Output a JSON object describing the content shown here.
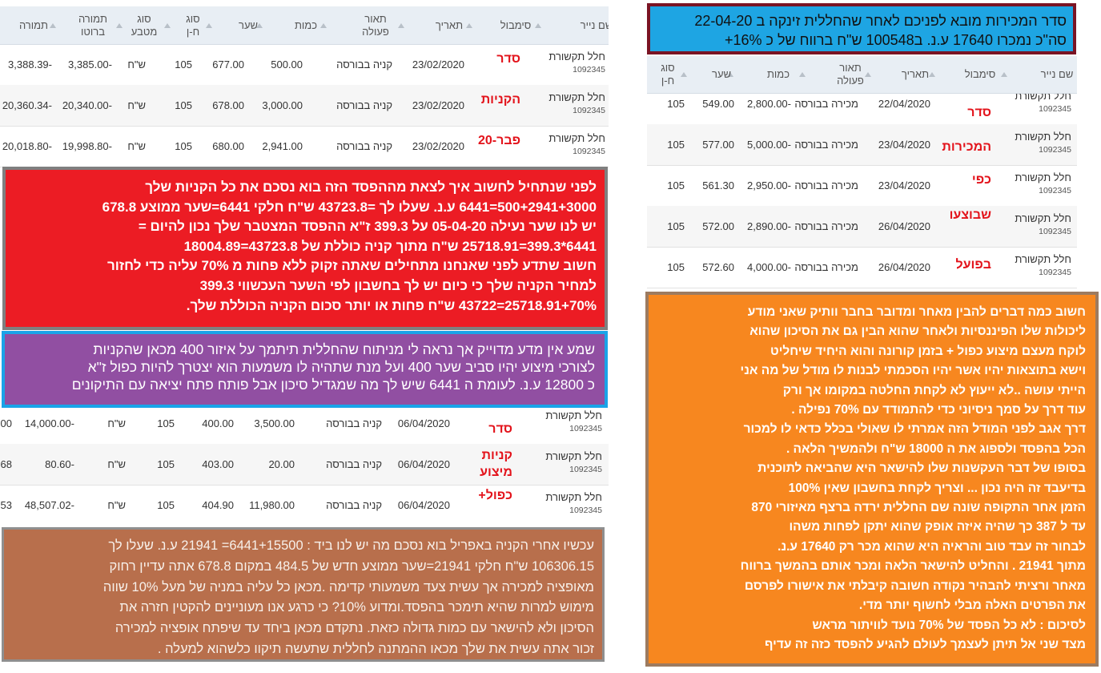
{
  "left_table": {
    "headers": [
      "שם נייר",
      "סימבול",
      "תאריך",
      "תאור פעולה",
      "כמות",
      "שער",
      "סוג ח-ן",
      "סוג מטבע",
      "תמורה ברוטו",
      "תמורה"
    ],
    "rows": [
      {
        "name": "חלל תקשורת",
        "id": "1092345",
        "note": "סדר",
        "date": "23/02/2020",
        "action": "קניה בבורסה",
        "quantity": "500.00",
        "price": "677.00",
        "account_type": "105",
        "currency": "ש\"ח",
        "gross": "-3,385.00",
        "net": "-3,388.39"
      },
      {
        "name": "חלל תקשורת",
        "id": "1092345",
        "note": "הקניות",
        "date": "23/02/2020",
        "action": "קניה בבורסה",
        "quantity": "3,000.00",
        "price": "678.00",
        "account_type": "105",
        "currency": "ש\"ח",
        "gross": "-20,340.00",
        "net": "-20,360.34"
      },
      {
        "name": "חלל תקשורת",
        "id": "1092345",
        "note": "פבר-20",
        "date": "23/02/2020",
        "action": "קניה בבורסה",
        "quantity": "2,941.00",
        "price": "680.00",
        "account_type": "105",
        "currency": "ש\"ח",
        "gross": "-19,998.80",
        "net": "-20,018.80"
      }
    ]
  },
  "left_table_2": {
    "rows": [
      {
        "name": "חלל תקשורת",
        "id": "1092345",
        "note": "סדר",
        "date": "06/04/2020",
        "action": "קניה בבורסה",
        "quantity": "3,500.00",
        "price": "400.00",
        "account_type": "105",
        "currency": "ש\"ח",
        "gross": "-14,000.00",
        "net": "00"
      },
      {
        "name": "חלל תקשורת",
        "id": "1092345",
        "note": "קניות מיצוע",
        "date": "06/04/2020",
        "action": "קניה בבורסה",
        "quantity": "20.00",
        "price": "403.00",
        "account_type": "105",
        "currency": "ש\"ח",
        "gross": "-80.60",
        "net": "68"
      },
      {
        "name": "חלל תקשורת",
        "id": "1092345",
        "note": "כפול+",
        "date": "06/04/2020",
        "action": "קניה בבורסה",
        "quantity": "11,980.00",
        "price": "404.90",
        "account_type": "105",
        "currency": "ש\"ח",
        "gross": "-48,507.02",
        "net": "53"
      }
    ]
  },
  "red_note": {
    "lines": [
      "לפני שנתחיל לחשוב איך לצאת מההפסד הזה בוא נסכם את  כל הקניות שלך",
      "500+2941+3000=6441 ע.נ. שעלו לך =43723.8 ש\"ח חלקי 6441=שער ממוצע 678.8",
      "יש לנו שער נעילה 05-04-20 על 399.3 ז\"א ההפסד המצטבר שלך נכון להיום =",
      "6441*399.3=25718.91 ש\"ח מתוך קניה כוללת של 43723.8=18004.89",
      "חשוב שתדע לפני שאנחנו מתחילים שאתה זקוק ללא פחות מ 70% עליה כדי לחזור",
      "למחיר הקניה שלך כי כיום יש לך בחשבון לפי השער העכשווי 399.3",
      "70%+25718.91=43722 ש\"ח פחות או יותר סכום הקניה הכוללת שלך."
    ]
  },
  "purple_note": {
    "lines": [
      "שמע אין מדע מדוייק אך נראה לי מניתוח שהחללית תיתמך על איזור 400 מכאן שהקניות",
      "לצורכי מיצוע יהיו סביב שער 400  ועל מנת שתהיה לו משמעות הוא יצטרך להיות כפול ז\"א",
      "כ 12800 ע.נ. לעומת ה 6441 שיש לך מה שמגדיל סיכון אבל פותח פתח יציאה עם התיקונים"
    ]
  },
  "brown_note": {
    "lines": [
      "עכשיו אחרי הקניה באפריל בוא נסכם מה יש לנו ביד : 6441+15500= 21941 ע.נ. שעלו לך",
      "106306.15 ש\"ח חלקי  21941=שער ממוצע חדש של 484.5 במקום 678.8 אתה עדיין רחוק",
      "מאופציה למכירה אך עשית צעד משמעותי קדימה .מכאן כל עליה במניה של מעל 10% שווה",
      "מימוש למרות שהיא תימכר בהפסד.ומדוע 10%? כי כרגע אנו מעוניינים להקטין חזרה את",
      "הסיכון ולא להישאר עם כמות גדולה כזאת. נתקדם מכאן ביחד עד שיפתח אופציה למכירה",
      "זכור אתה עשית את שלך מכאו ההמתנה לחללית שתעשה תיקוו כלשהוא למעלה ."
    ]
  },
  "title_note": {
    "lines": [
      "סדר המכירות מובא לפניכם לאחר שהחללית זינקה ב 22-04-20",
      "סה\"כ נמכרו 17640 ע.נ.  ב100548 ש\"ח ברווח של כ 16%+"
    ]
  },
  "right_table": {
    "headers": [
      "שם נייר",
      "סימבול",
      "תאריך",
      "תאור פעולה",
      "כמות",
      "שער",
      "סוג ח-ן"
    ],
    "rows": [
      {
        "name": "חלל תקשורת",
        "id": "1092345",
        "note": "סדר",
        "date": "22/04/2020",
        "action": "מכירה בבורסה",
        "quantity": "-2,800.00",
        "price": "549.00",
        "account_type": "105"
      },
      {
        "name": "חלל תקשורת",
        "id": "1092345",
        "note": "המכירות",
        "date": "23/04/2020",
        "action": "מכירה בבורסה",
        "quantity": "-5,000.00",
        "price": "577.00",
        "account_type": "105"
      },
      {
        "name": "חלל תקשורת",
        "id": "1092345",
        "note": "כפי",
        "date": "23/04/2020",
        "action": "מכירה בבורסה",
        "quantity": "-2,950.00",
        "price": "561.30",
        "account_type": "105"
      },
      {
        "name": "חלל תקשורת",
        "id": "1092345",
        "note": "שבוצעו",
        "date": "26/04/2020",
        "action": "מכירה בבורסה",
        "quantity": "-2,890.00",
        "price": "572.00",
        "account_type": "105"
      },
      {
        "name": "חלל תקשורת",
        "id": "1092345",
        "note": "בפועל",
        "date": "26/04/2020",
        "action": "מכירה בבורסה",
        "quantity": "-4,000.00",
        "price": "572.60",
        "account_type": "105"
      }
    ]
  },
  "orange_note": {
    "lines": [
      "חשוב כמה דברים להבין מאחר ומדובר בחבר וותיק שאני מודע",
      "ליכולות שלו הפיננסיות ולאחר שהוא הבין גם את הסיכון שהוא",
      "לוקח מעצם  מיצוע כפול + בזמן קורונה והוא היחיד שיחליט",
      "וישא בתוצאות יהיו אשר יהיו הסכמתי לבנות לו מודל של מה אני",
      "הייתי עושה ..לא ייעוץ לא לקחת החלטה במקומו אך ורק",
      "עוד דרך על סמך ניסיוני כדי להתמודד עם 70% נפילה .",
      "דרך אגב לפני המודל הזה אמרתי לו שאולי בכלל כדאי לו למכור",
      "הכל בהפסד ולספוג את ה 18000 ש\"ח ולהמשיך הלאה .",
      "בסופו של דבר העקשנות שלו להישאר היא שהביאה לתוכנית",
      "בדיעבד זה היה נכון ... וצריך לקחת בחשבון שאין 100%",
      "הזמן אחר התקופה שונה שם החללית ירדה ברצף מאיזורי 870",
      "עד ל 387 כך שהיה איזה אופק שהוא יתקן לפחות משהו",
      "לבחור זה עבד טוב והראיה היא שהוא מכר רק 17640 ע.נ.",
      "מתוך 21941 . והחליט להישאר הלאה ומכר אותם בהמשך ברווח",
      "מאחר ורציתי להבהיר נקודה חשובה קיבלתי את אישורו לפרסם",
      "את הפרטים האלה מבלי לחשוף יותר מדי.",
      "לסיכום : לא  כל הפסד של 70% נועד לוויתור מראש",
      "מצד שני אל תיתן לעצמך לעולם להגיע להפסד כזה  זה עדיף"
    ]
  }
}
